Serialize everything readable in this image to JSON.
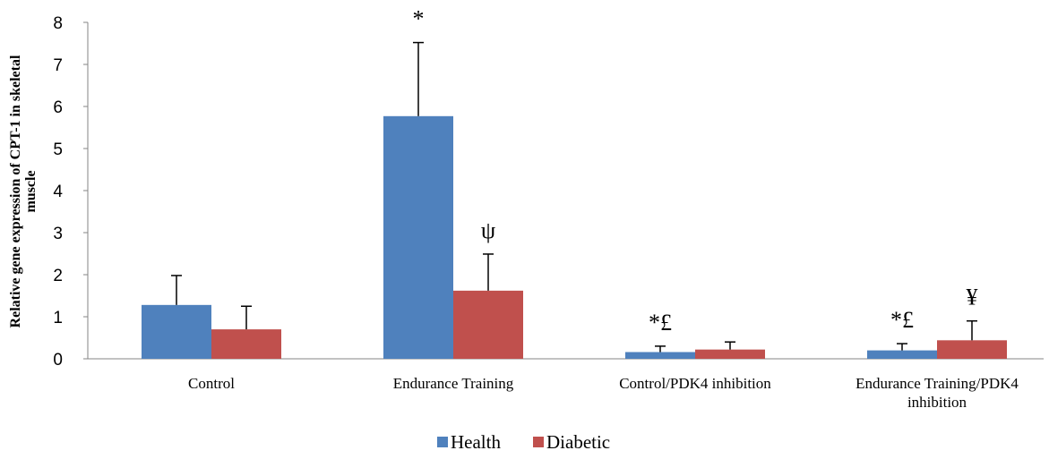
{
  "chart_data": {
    "type": "bar",
    "categories": [
      "Control",
      "Endurance Training",
      "Control/PDK4 inhibition",
      "Endurance Training/PDK4 inhibition"
    ],
    "category_lines": [
      [
        "Control"
      ],
      [
        "Endurance Training"
      ],
      [
        "Control/PDK4 inhibition"
      ],
      [
        "Endurance Training/PDK4",
        "inhibition"
      ]
    ],
    "series": [
      {
        "name": "Health",
        "color": "#4F81BD",
        "values": [
          1.28,
          5.77,
          0.16,
          0.2
        ],
        "errors": [
          0.7,
          1.75,
          0.14,
          0.16
        ]
      },
      {
        "name": "Diabetic",
        "color": "#C0504D",
        "values": [
          0.7,
          1.62,
          0.22,
          0.44
        ],
        "errors": [
          0.55,
          0.87,
          0.18,
          0.46
        ]
      }
    ],
    "annotations": [
      {
        "category": 1,
        "series": 0,
        "text": "*"
      },
      {
        "category": 1,
        "series": 1,
        "text": "ψ"
      },
      {
        "category": 2,
        "series": 0,
        "text": "*£"
      },
      {
        "category": 3,
        "series": 0,
        "text": "*£"
      },
      {
        "category": 3,
        "series": 1,
        "text": "¥"
      }
    ],
    "ylabel_lines": [
      "Relative gene expression of CPT-1 in skeletal",
      "muscle"
    ],
    "xlabel": "",
    "ylim": [
      0,
      8
    ],
    "yticks": [
      0,
      1,
      2,
      3,
      4,
      5,
      6,
      7,
      8
    ],
    "grid": false,
    "legend_position": "bottom"
  }
}
